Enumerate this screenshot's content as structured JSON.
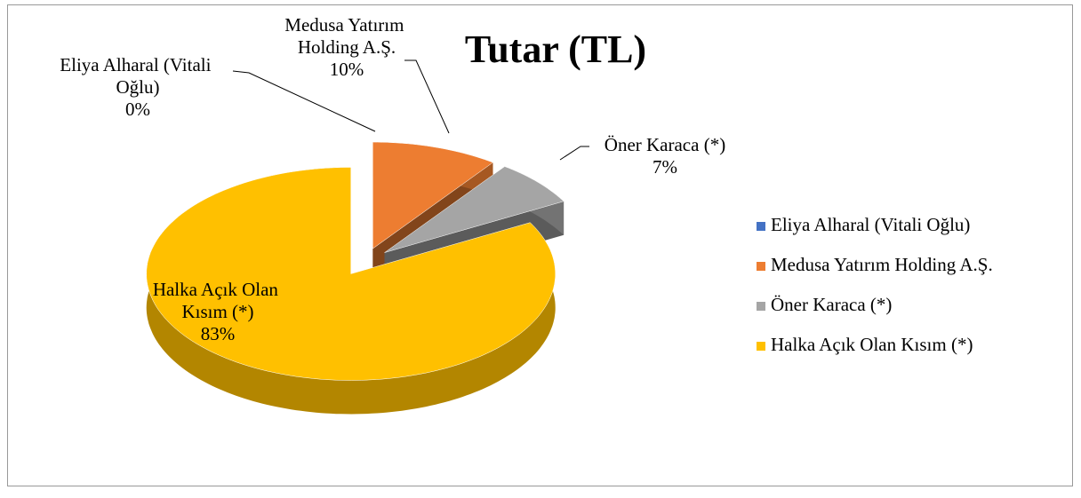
{
  "chart_data": {
    "type": "pie",
    "title": "Tutar (TL)",
    "categories": [
      "Eliya Alharal (Vitali Oğlu)",
      "Medusa Yatırım Holding A.Ş.",
      "Öner Karaca (*)",
      "Halka Açık Olan Kısım (*)"
    ],
    "values": [
      0,
      10,
      7,
      83
    ],
    "value_labels": [
      "0%",
      "10%",
      "7%",
      "83%"
    ],
    "colors": [
      "#4472c4",
      "#ed7d31",
      "#a5a5a5",
      "#ffc000"
    ],
    "legend": "right"
  }
}
